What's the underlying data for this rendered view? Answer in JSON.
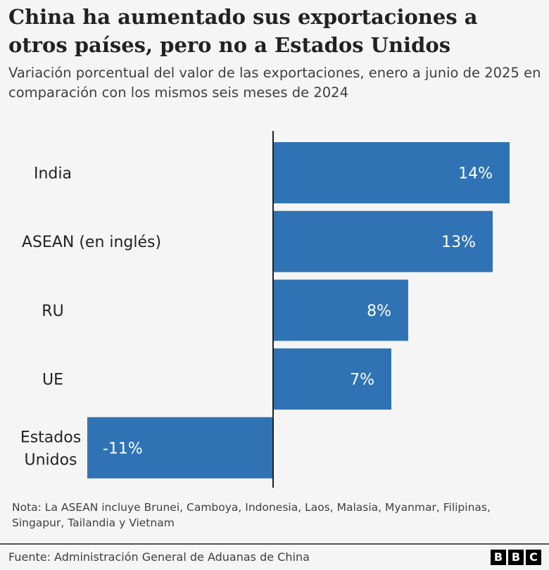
{
  "chart_data": {
    "type": "bar",
    "orientation": "horizontal",
    "title": "China ha aumentado sus exportaciones a otros países, pero no a Estados Unidos",
    "subtitle": "Variación porcentual del valor de las exportaciones, enero a junio de 2025 en comparación con los mismos seis meses de 2024",
    "categories": [
      [
        "India"
      ],
      [
        "ASEAN (en inglés)"
      ],
      [
        "RU"
      ],
      [
        "UE"
      ],
      [
        "Estados",
        "Unidos"
      ]
    ],
    "values": [
      14,
      13,
      8,
      7,
      -11
    ],
    "data_labels": [
      "14%",
      "13%",
      "8%",
      "7%",
      "-11%"
    ],
    "xlim": [
      -11,
      14
    ],
    "bar_color": "#2f73b4",
    "grid": false
  },
  "note": "Nota: La ASEAN incluye Brunei, Camboya, Indonesia, Laos, Malasia, Myanmar, Filipinas, Singapur, Tailandia y Vietnam",
  "source": "Fuente: Administración General de Aduanas de China",
  "logo": [
    "B",
    "B",
    "C"
  ]
}
